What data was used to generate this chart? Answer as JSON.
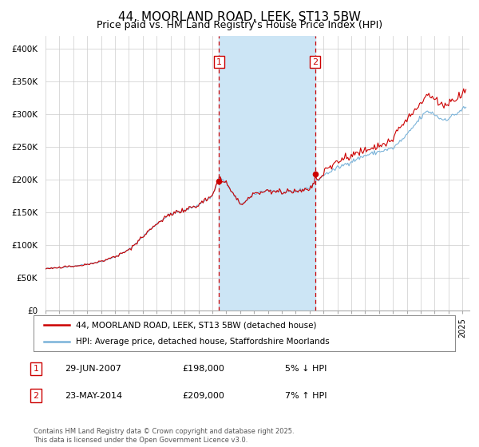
{
  "title": "44, MOORLAND ROAD, LEEK, ST13 5BW",
  "subtitle": "Price paid vs. HM Land Registry's House Price Index (HPI)",
  "xlim": [
    1995.0,
    2025.5
  ],
  "ylim": [
    0,
    420000
  ],
  "yticks": [
    0,
    50000,
    100000,
    150000,
    200000,
    250000,
    300000,
    350000,
    400000
  ],
  "ytick_labels": [
    "£0",
    "£50K",
    "£100K",
    "£150K",
    "£200K",
    "£250K",
    "£300K",
    "£350K",
    "£400K"
  ],
  "hpi_color": "#7ab3d9",
  "price_color": "#cc0000",
  "sale1_date": 2007.49,
  "sale1_price": 198000,
  "sale1_label": "1",
  "sale1_date_str": "29-JUN-2007",
  "sale1_price_str": "£198,000",
  "sale1_pct": "5% ↓ HPI",
  "sale2_date": 2014.39,
  "sale2_price": 209000,
  "sale2_label": "2",
  "sale2_date_str": "23-MAY-2014",
  "sale2_price_str": "£209,000",
  "sale2_pct": "7% ↑ HPI",
  "legend_label1": "44, MOORLAND ROAD, LEEK, ST13 5BW (detached house)",
  "legend_label2": "HPI: Average price, detached house, Staffordshire Moorlands",
  "footnote": "Contains HM Land Registry data © Crown copyright and database right 2025.\nThis data is licensed under the Open Government Licence v3.0.",
  "shade_between": [
    2007.49,
    2014.39
  ],
  "shade_color": "#cce5f5",
  "background_color": "#ffffff",
  "grid_color": "#cccccc",
  "title_fontsize": 11,
  "subtitle_fontsize": 9
}
